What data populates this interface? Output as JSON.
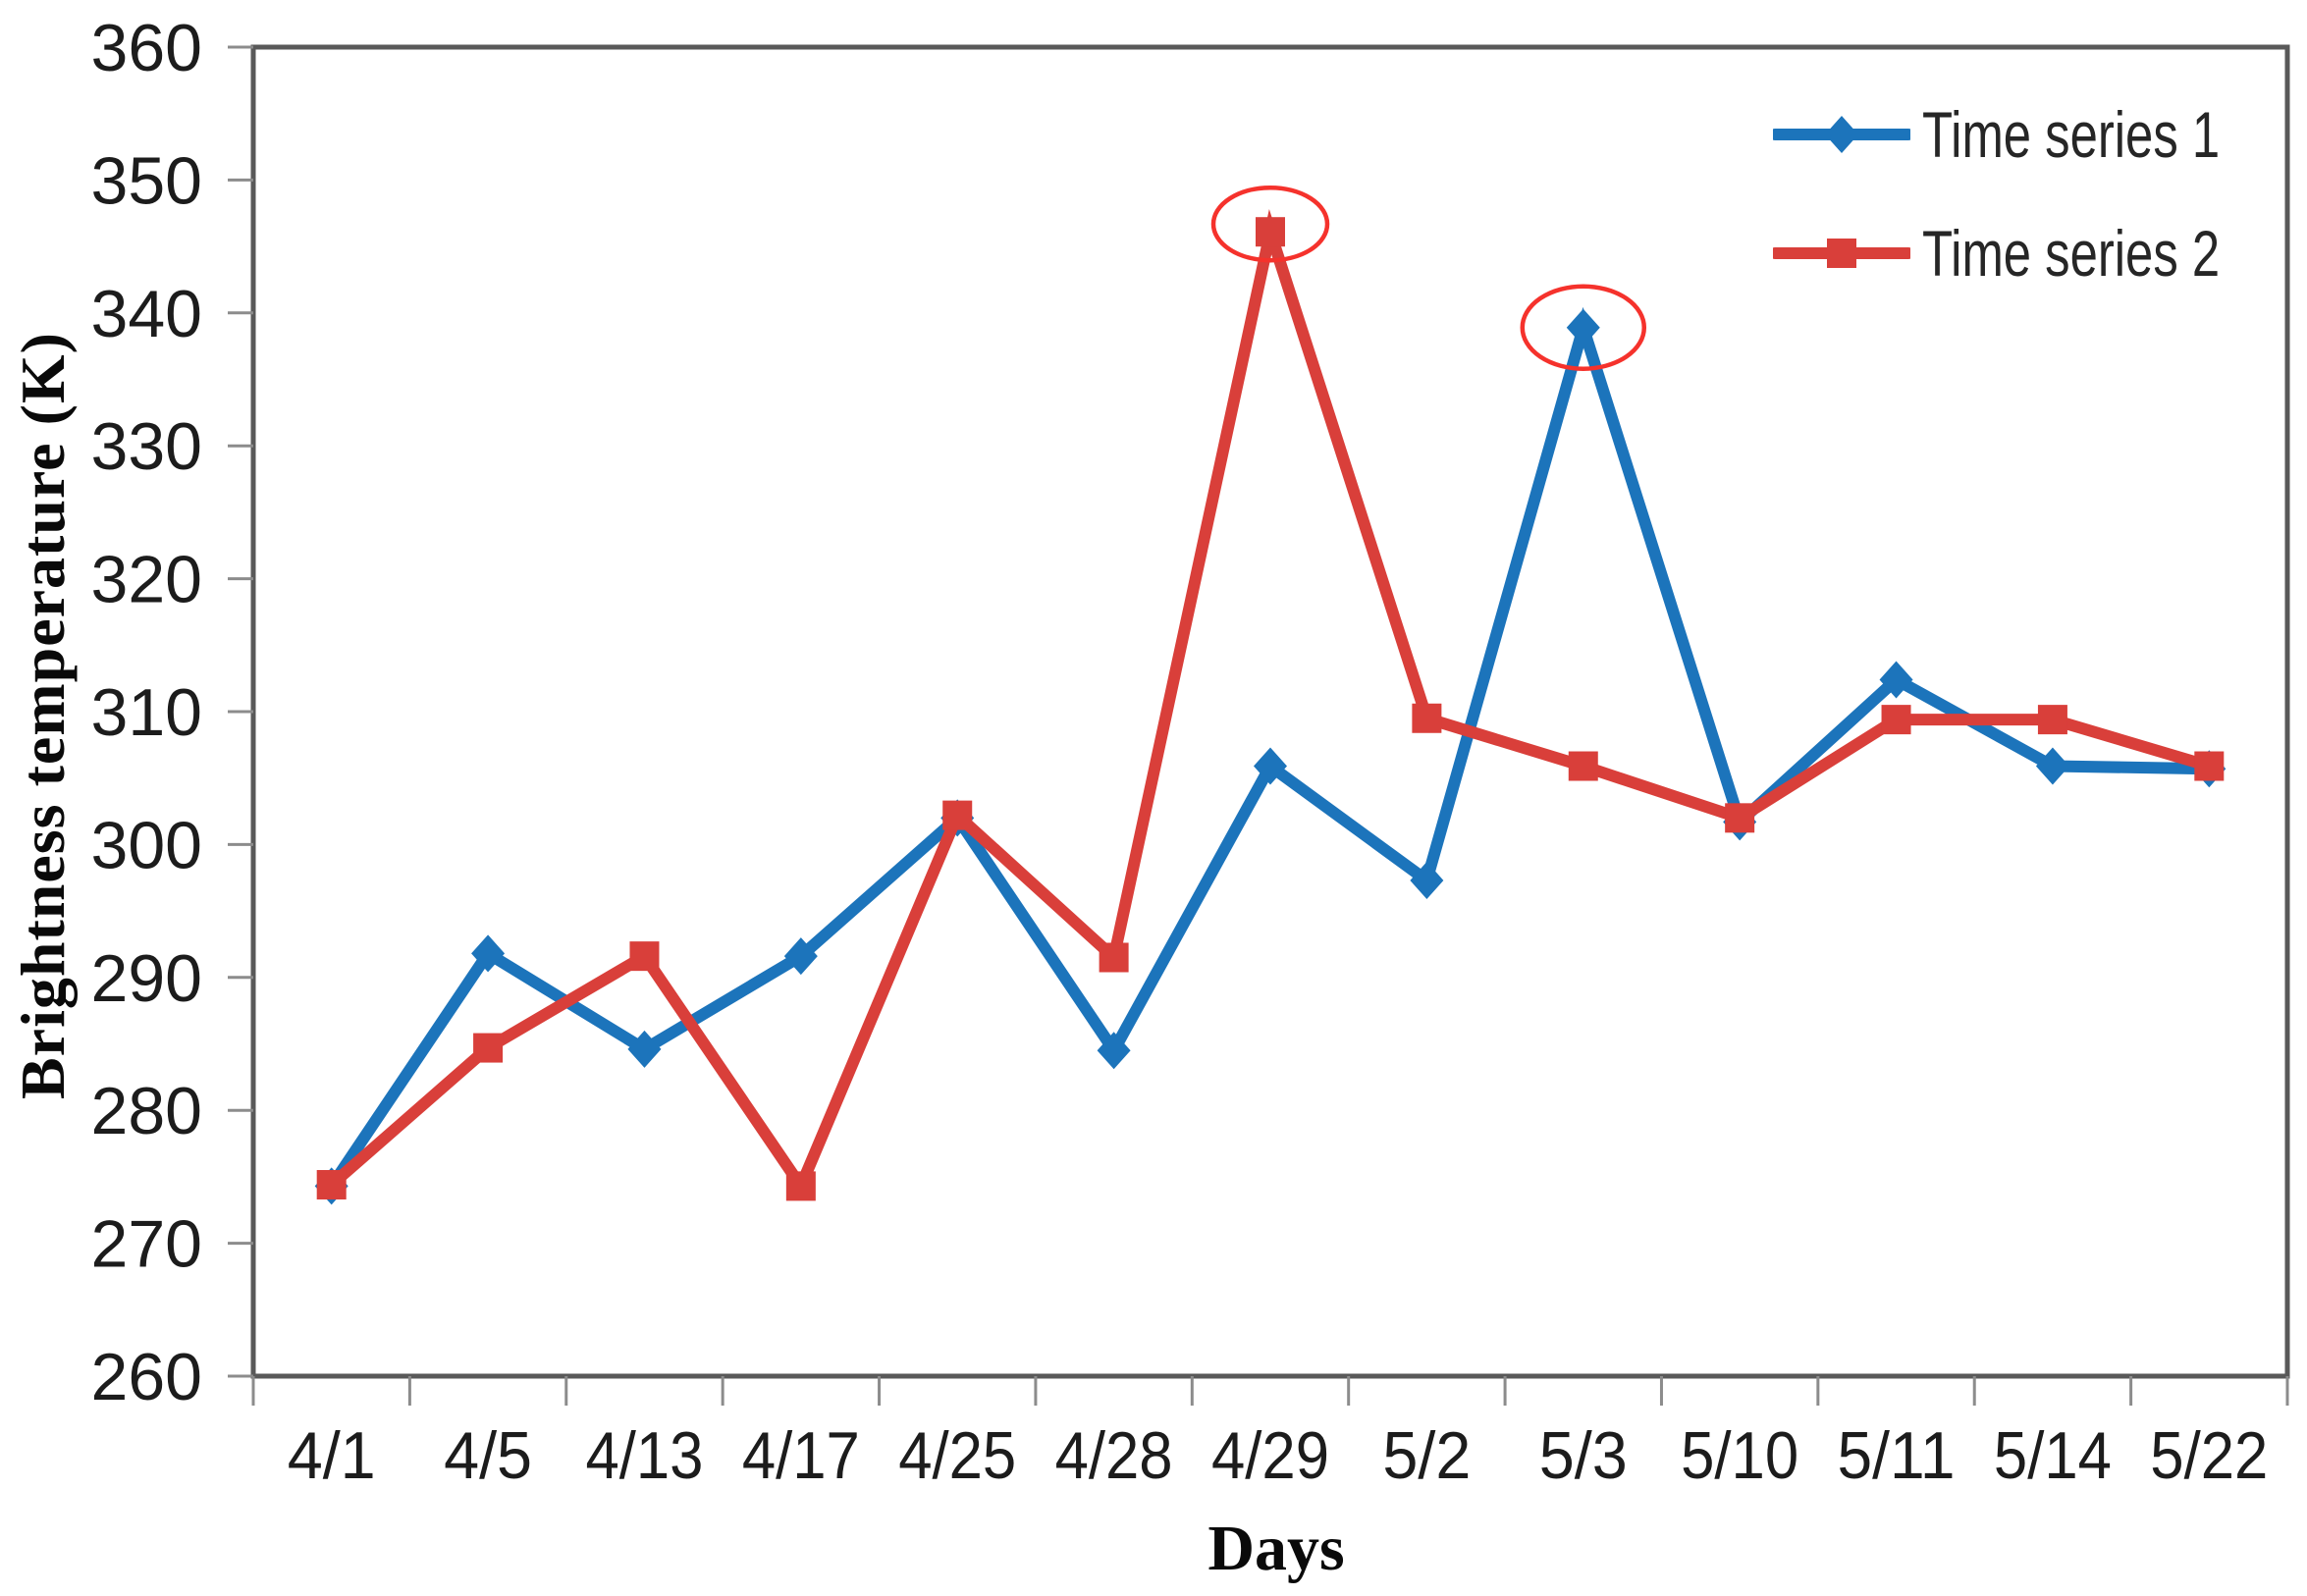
{
  "figure": {
    "background": "#ffffff"
  },
  "chart_data": {
    "type": "line",
    "title": "",
    "xlabel": "Days",
    "ylabel": "Brightness temperature (K)",
    "categories": [
      "4/1",
      "4/5",
      "4/13",
      "4/17",
      "4/25",
      "4/28",
      "4/29",
      "5/2",
      "5/3",
      "5/10",
      "5/11",
      "5/14",
      "5/22"
    ],
    "series": [
      {
        "name": "Time series 1",
        "color": "#1C74BB",
        "marker": "diamond",
        "values": [
          274.3,
          291.8,
          284.6,
          291.6,
          302.0,
          284.5,
          305.9,
          297.3,
          338.9,
          301.7,
          312.4,
          305.9,
          305.7
        ]
      },
      {
        "name": "Time series 2",
        "color": "#D93F3A",
        "marker": "square",
        "values": [
          274.4,
          284.7,
          291.6,
          274.3,
          302.2,
          291.5,
          346.1,
          309.5,
          305.9,
          302.0,
          309.4,
          309.4,
          305.9
        ]
      }
    ],
    "ylim": [
      260,
      360
    ],
    "ytick_step": 10,
    "y_ticks": [
      260,
      270,
      280,
      290,
      300,
      310,
      320,
      330,
      340,
      350,
      360
    ],
    "grid": false,
    "legend_position": "top-right-inside",
    "annotations": [
      {
        "shape": "ellipse",
        "series": "Time series 2",
        "category": "4/29",
        "color": "#F5322C",
        "note": "circled peak"
      },
      {
        "shape": "ellipse",
        "series": "Time series 1",
        "category": "5/3",
        "color": "#F5322C",
        "note": "circled peak"
      }
    ]
  },
  "colors": {
    "plot_border": "#595959",
    "tick": "#8c8c8c",
    "tick_text": "#1c1c1c",
    "annotation": "#F5322C"
  }
}
